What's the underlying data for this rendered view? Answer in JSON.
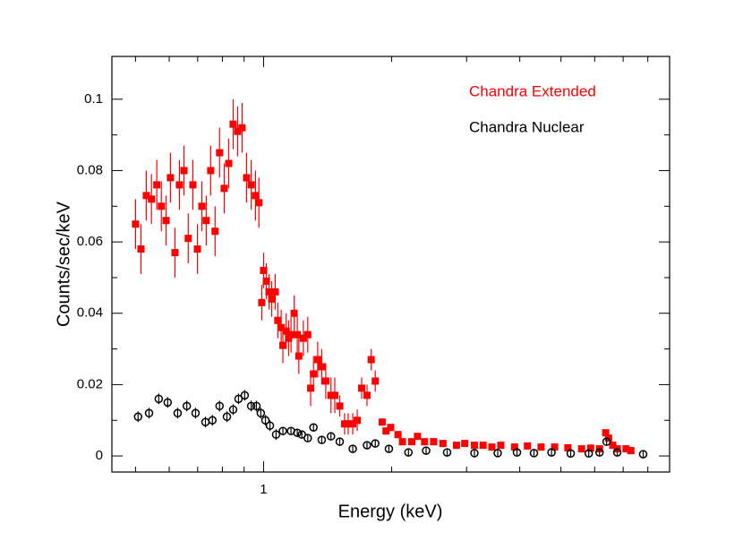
{
  "chart_data": {
    "type": "scatter",
    "xlabel": "Energy (keV)",
    "ylabel": "Counts/sec/keV",
    "xscale": "log",
    "xlim": [
      0.44,
      9.0
    ],
    "ylim": [
      -0.0045,
      0.112
    ],
    "xticks": [
      1
    ],
    "xminor": [
      0.5,
      0.6,
      0.7,
      0.8,
      0.9,
      2,
      3,
      4,
      5,
      6,
      7,
      8,
      9
    ],
    "yticks": [
      0,
      0.02,
      0.04,
      0.06,
      0.08,
      0.1
    ],
    "yminor": [
      0.01,
      0.03,
      0.05,
      0.07,
      0.09
    ],
    "series": [
      {
        "name": "Chandra Extended",
        "color": "#ff0000",
        "marker": "square",
        "x": [
          0.5,
          0.515,
          0.53,
          0.545,
          0.561,
          0.575,
          0.59,
          0.604,
          0.619,
          0.634,
          0.65,
          0.665,
          0.682,
          0.699,
          0.716,
          0.733,
          0.751,
          0.769,
          0.788,
          0.808,
          0.828,
          0.848,
          0.869,
          0.89,
          0.912,
          0.935,
          0.957,
          0.975,
          0.99,
          1.0,
          1.015,
          1.03,
          1.045,
          1.065,
          1.08,
          1.1,
          1.11,
          1.13,
          1.145,
          1.16,
          1.18,
          1.2,
          1.21,
          1.24,
          1.27,
          1.29,
          1.31,
          1.34,
          1.37,
          1.4,
          1.44,
          1.47,
          1.51,
          1.55,
          1.58,
          1.62,
          1.66,
          1.7,
          1.75,
          1.79,
          1.83,
          1.9,
          1.94,
          1.99,
          2.07,
          2.12,
          2.23,
          2.3,
          2.39,
          2.51,
          2.64,
          2.84,
          2.97,
          3.13,
          3.28,
          3.44,
          3.61,
          3.89,
          4.17,
          4.49,
          4.83,
          5.19,
          5.59,
          5.87,
          6.16,
          6.37,
          6.47,
          6.62,
          6.78,
          7.11,
          7.3
        ],
        "values": [
          0.065,
          0.058,
          0.073,
          0.072,
          0.076,
          0.07,
          0.066,
          0.078,
          0.057,
          0.076,
          0.08,
          0.061,
          0.076,
          0.058,
          0.07,
          0.066,
          0.08,
          0.063,
          0.085,
          0.075,
          0.082,
          0.093,
          0.091,
          0.092,
          0.078,
          0.076,
          0.073,
          0.071,
          0.043,
          0.052,
          0.049,
          0.046,
          0.044,
          0.046,
          0.038,
          0.036,
          0.031,
          0.035,
          0.033,
          0.034,
          0.04,
          0.034,
          0.028,
          0.033,
          0.034,
          0.019,
          0.023,
          0.027,
          0.025,
          0.021,
          0.017,
          0.017,
          0.014,
          0.009,
          0.009,
          0.009,
          0.01,
          0.019,
          0.017,
          0.027,
          0.021,
          0.0095,
          0.007,
          0.008,
          0.006,
          0.004,
          0.004,
          0.0055,
          0.004,
          0.004,
          0.0035,
          0.003,
          0.0035,
          0.003,
          0.003,
          0.0025,
          0.003,
          0.0025,
          0.0028,
          0.0025,
          0.0025,
          0.0023,
          0.002,
          0.0022,
          0.002,
          0.0065,
          0.005,
          0.003,
          0.002,
          0.002,
          0.0015
        ],
        "errors": [
          0.007,
          0.007,
          0.007,
          0.007,
          0.007,
          0.007,
          0.007,
          0.007,
          0.007,
          0.007,
          0.007,
          0.007,
          0.007,
          0.007,
          0.007,
          0.007,
          0.007,
          0.007,
          0.007,
          0.007,
          0.007,
          0.007,
          0.007,
          0.007,
          0.007,
          0.007,
          0.007,
          0.007,
          0.005,
          0.005,
          0.005,
          0.005,
          0.005,
          0.005,
          0.005,
          0.005,
          0.005,
          0.005,
          0.005,
          0.005,
          0.005,
          0.005,
          0.005,
          0.005,
          0.005,
          0.005,
          0.005,
          0.005,
          0.005,
          0.005,
          0.005,
          0.005,
          0.003,
          0.003,
          0.003,
          0.003,
          0.003,
          0.003,
          0.003,
          0.003,
          0.003,
          0.001,
          0.001,
          0.001,
          0.001,
          0.001,
          0.001,
          0.001,
          0.001,
          0.001,
          0.001,
          0.001,
          0.001,
          0.001,
          0.001,
          0.001,
          0.001,
          0.001,
          0.001,
          0.001,
          0.001,
          0.001,
          0.001,
          0.001,
          0.001,
          0.001,
          0.001,
          0.001,
          0.001,
          0.001,
          0.001
        ]
      },
      {
        "name": "Chandra Nuclear",
        "color": "#000000",
        "marker": "circle",
        "x": [
          0.507,
          0.538,
          0.567,
          0.595,
          0.628,
          0.66,
          0.692,
          0.73,
          0.758,
          0.788,
          0.82,
          0.848,
          0.873,
          0.903,
          0.935,
          0.962,
          0.985,
          1.01,
          1.035,
          1.07,
          1.11,
          1.16,
          1.2,
          1.23,
          1.27,
          1.31,
          1.37,
          1.44,
          1.51,
          1.62,
          1.75,
          1.83,
          1.97,
          2.19,
          2.41,
          2.7,
          3.13,
          3.55,
          3.94,
          4.32,
          4.75,
          5.27,
          5.81,
          6.16,
          6.4,
          6.78,
          7.8
        ],
        "values": [
          0.011,
          0.012,
          0.016,
          0.015,
          0.012,
          0.014,
          0.012,
          0.0095,
          0.01,
          0.014,
          0.011,
          0.013,
          0.016,
          0.017,
          0.014,
          0.014,
          0.012,
          0.01,
          0.0085,
          0.006,
          0.007,
          0.007,
          0.0065,
          0.006,
          0.005,
          0.008,
          0.0045,
          0.0055,
          0.004,
          0.002,
          0.003,
          0.0035,
          0.002,
          0.001,
          0.0015,
          0.001,
          0.0008,
          0.0008,
          0.001,
          0.0008,
          0.001,
          0.0007,
          0.0007,
          0.001,
          0.004,
          0.001,
          0.0005
        ],
        "errors": [
          0.0015,
          0.0015,
          0.0015,
          0.0015,
          0.0015,
          0.0015,
          0.0015,
          0.0015,
          0.0015,
          0.0015,
          0.0015,
          0.0015,
          0.0015,
          0.0015,
          0.0015,
          0.0015,
          0.0015,
          0.0015,
          0.0015,
          0.0015,
          0.001,
          0.001,
          0.001,
          0.001,
          0.001,
          0.001,
          0.001,
          0.001,
          0.001,
          0.001,
          0.001,
          0.001,
          0.001,
          0.001,
          0.001,
          0.001,
          0.001,
          0.001,
          0.001,
          0.001,
          0.001,
          0.001,
          0.001,
          0.001,
          0.001,
          0.001,
          0.001
        ]
      }
    ]
  }
}
